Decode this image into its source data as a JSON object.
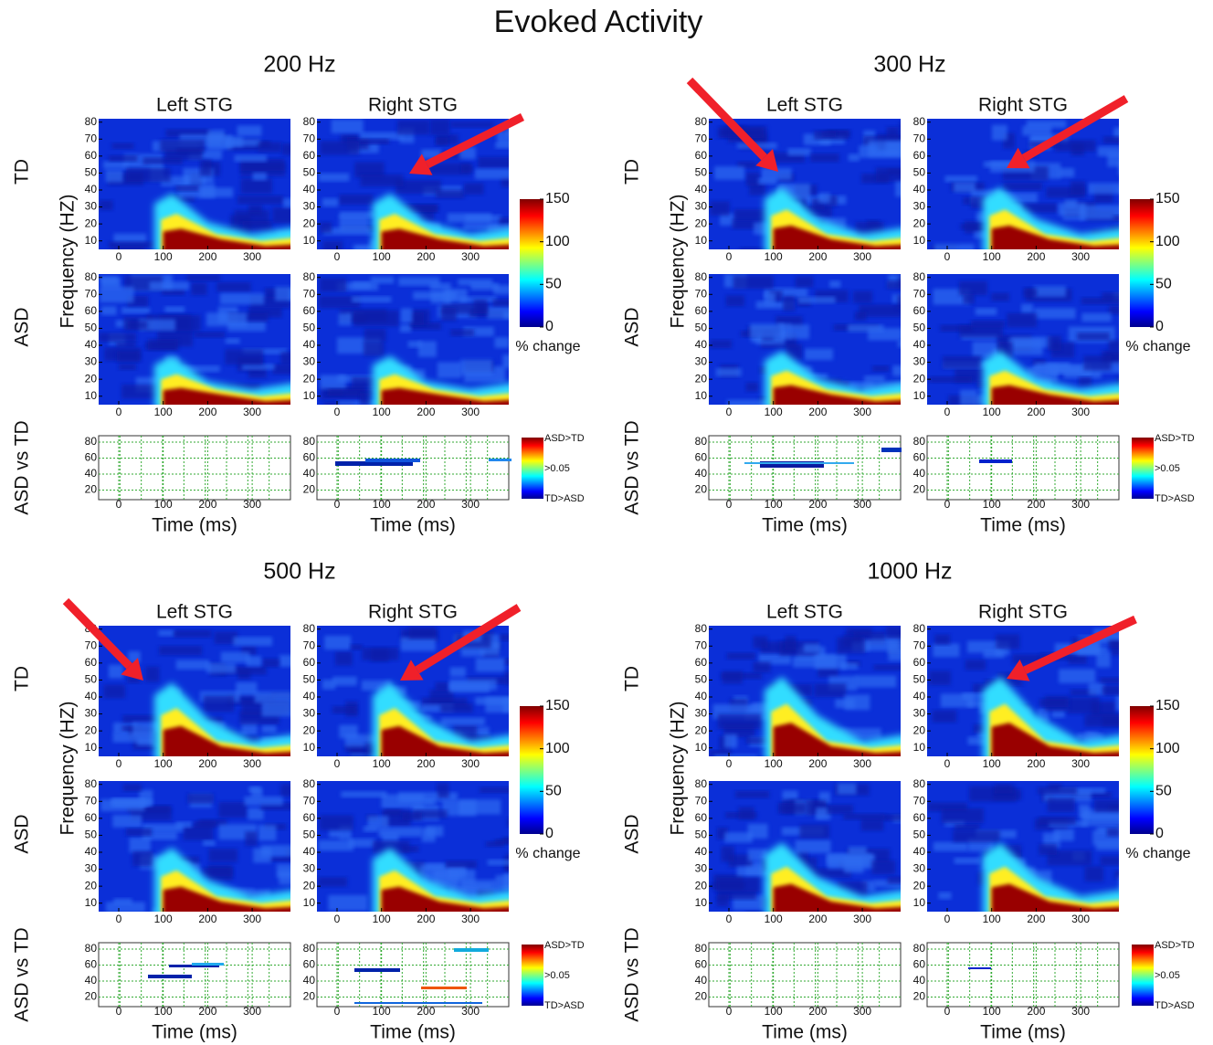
{
  "title": "Evoked Activity",
  "panels": [
    {
      "title": "200 Hz",
      "columns": [
        "Left STG",
        "Right STG"
      ]
    },
    {
      "title": "300 Hz",
      "columns": [
        "Left STG",
        "Right STG"
      ]
    },
    {
      "title": "500 Hz",
      "columns": [
        "Left STG",
        "Right STG"
      ]
    },
    {
      "title": "1000 Hz",
      "columns": [
        "Left STG",
        "Right STG"
      ]
    }
  ],
  "row_labels": [
    "TD",
    "ASD",
    "ASD vs TD"
  ],
  "y_label": "Frequency (HZ)",
  "x_label": "Time (ms)",
  "freq_ticks": [
    10,
    20,
    30,
    40,
    50,
    60,
    70,
    80
  ],
  "stat_ticks": [
    20,
    40,
    60,
    80
  ],
  "time_ticks": [
    0,
    100,
    200,
    300
  ],
  "colorbar": {
    "label": "% change",
    "ticks": [
      0,
      50,
      100,
      150
    ]
  },
  "stat_colorbar": {
    "labels": [
      "ASD>TD",
      ">0.05",
      "TD>ASD"
    ]
  }
}
